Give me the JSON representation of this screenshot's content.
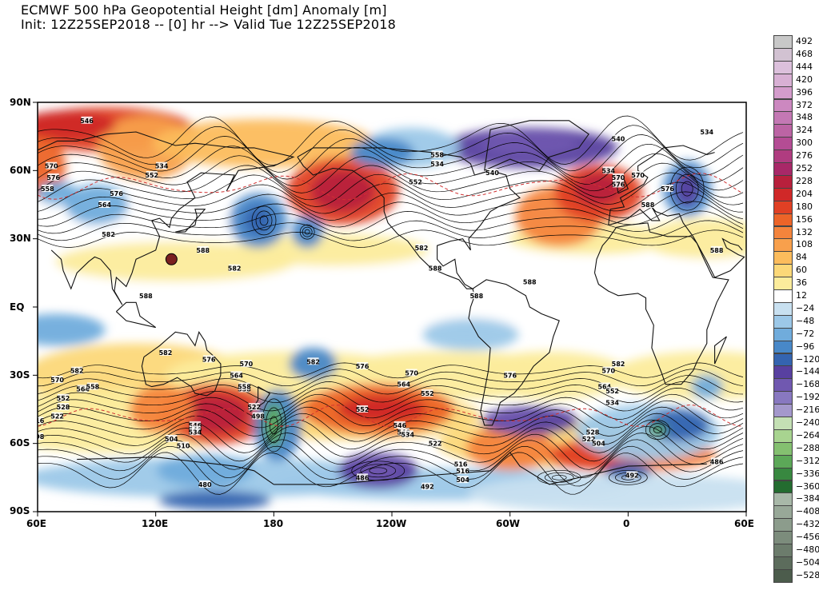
{
  "title": {
    "line1": "ECMWF 500 hPa Geopotential Height [dm] Anomaly [m]",
    "line2": "Init: 12Z25SEP2018 -- [0] hr --> Valid Tue 12Z25SEP2018"
  },
  "axes": {
    "lat_labels": [
      "90N",
      "60N",
      "30N",
      "EQ",
      "30S",
      "60S",
      "90S"
    ],
    "lon_labels": [
      "60E",
      "120E",
      "180",
      "120W",
      "60W",
      "0",
      "60E"
    ]
  },
  "colorbar": {
    "levels": [
      "492",
      "468",
      "444",
      "420",
      "396",
      "372",
      "348",
      "324",
      "300",
      "276",
      "252",
      "228",
      "204",
      "180",
      "156",
      "132",
      "108",
      "84",
      "60",
      "36",
      "12",
      "−24",
      "−48",
      "−72",
      "−96",
      "−120",
      "−144",
      "−168",
      "−192",
      "−216",
      "−240",
      "−264",
      "−288",
      "−312",
      "−336",
      "−360",
      "−384",
      "−408",
      "−432",
      "−456",
      "−480",
      "−504",
      "−528"
    ],
    "colors": [
      "#c8c8c8",
      "#d2c2d2",
      "#dcc0dc",
      "#d8b0d4",
      "#d49ccc",
      "#cc88c0",
      "#c478b4",
      "#bc64a4",
      "#b44c94",
      "#b03c80",
      "#a82868",
      "#b8203c",
      "#d02828",
      "#e04024",
      "#ec6428",
      "#f4843c",
      "#f8a04c",
      "#fcbc5c",
      "#fcd878",
      "#fcec9c",
      "#ffffff",
      "#c8e0f0",
      "#9cc8e8",
      "#70acdc",
      "#4888c8",
      "#3464b0",
      "#5840a0",
      "#7058b0",
      "#8878c0",
      "#a498cc",
      "#c4e0b4",
      "#a8d490",
      "#84c070",
      "#5ca858",
      "#388840",
      "#246c30",
      "#a8b8a8",
      "#98a898",
      "#8c9c8c",
      "#7c8c7c",
      "#6c7c6c",
      "#5c6c5c",
      "#4c5c4c"
    ]
  },
  "contour_labels": {
    "labels": [
      "540",
      "546",
      "570",
      "576",
      "558",
      "564",
      "534",
      "552",
      "582",
      "588",
      "522",
      "498",
      "510",
      "504",
      "516",
      "528",
      "480",
      "486",
      "492"
    ]
  }
}
